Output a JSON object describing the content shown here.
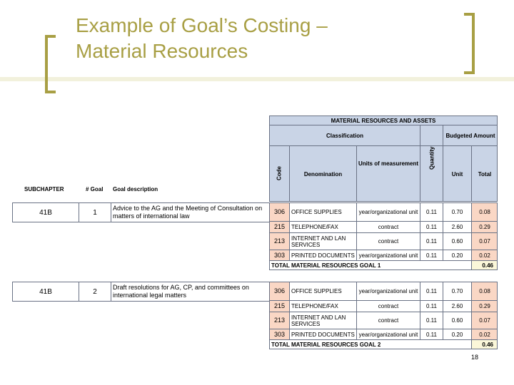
{
  "slide": {
    "title_line1": "Example of Goal’s Costing –",
    "title_line2": "Material Resources",
    "page_number": "18"
  },
  "left_table": {
    "headers": {
      "subchapter": "SUBCHAPTER",
      "goal_num": "# Goal",
      "goal_desc": "Goal description"
    },
    "goals": [
      {
        "subchapter": "41B",
        "goal": "1",
        "description": "Advice to the AG and the Meeting of Consultation on matters of international law"
      },
      {
        "subchapter": "41B",
        "goal": "2",
        "description": "Draft resolutions for AG, CP, and committees on international legal matters"
      }
    ]
  },
  "resources_table": {
    "title": "MATERIAL RESOURCES AND ASSETS",
    "classification": "Classification",
    "budgeted_amount": "Budgeted Amount",
    "code": "Code",
    "denomination": "Denomination",
    "units": "Units of measurement",
    "quantity": "Quantity",
    "unit": "Unit",
    "total": "Total",
    "blocks": [
      {
        "rows": [
          {
            "code": "306",
            "denomination": "OFFICE SUPPLIES",
            "units": "year/organizational unit",
            "quantity": "0.11",
            "unit": "0.70",
            "total": "0.08"
          },
          {
            "code": "215",
            "denomination": "TELEPHONE/FAX",
            "units": "contract",
            "quantity": "0.11",
            "unit": "2.60",
            "total": "0.29"
          },
          {
            "code": "213",
            "denomination": "INTERNET AND LAN SERVICES",
            "units": "contract",
            "quantity": "0.11",
            "unit": "0.60",
            "total": "0.07"
          },
          {
            "code": "303",
            "denomination": "PRINTED DOCUMENTS",
            "units": "year/organizational unit",
            "quantity": "0.11",
            "unit": "0.20",
            "total": "0.02"
          }
        ],
        "total_label": "TOTAL MATERIAL RESOURCES GOAL 1",
        "total_value": "0.46"
      },
      {
        "rows": [
          {
            "code": "306",
            "denomination": "OFFICE SUPPLIES",
            "units": "year/organizational unit",
            "quantity": "0.11",
            "unit": "0.70",
            "total": "0.08"
          },
          {
            "code": "215",
            "denomination": "TELEPHONE/FAX",
            "units": "contract",
            "quantity": "0.11",
            "unit": "2.60",
            "total": "0.29"
          },
          {
            "code": "213",
            "denomination": "INTERNET AND LAN SERVICES",
            "units": "contract",
            "quantity": "0.11",
            "unit": "0.60",
            "total": "0.07"
          },
          {
            "code": "303",
            "denomination": "PRINTED DOCUMENTS",
            "units": "year/organizational unit",
            "quantity": "0.11",
            "unit": "0.20",
            "total": "0.02"
          }
        ],
        "total_label": "TOTAL MATERIAL RESOURCES GOAL 2",
        "total_value": "0.46"
      }
    ]
  },
  "colors": {
    "accent": "#a89f44",
    "header_fill": "#c9d4e6",
    "total_fill": "#fad7c5",
    "sum_fill": "#fbf7d9"
  }
}
